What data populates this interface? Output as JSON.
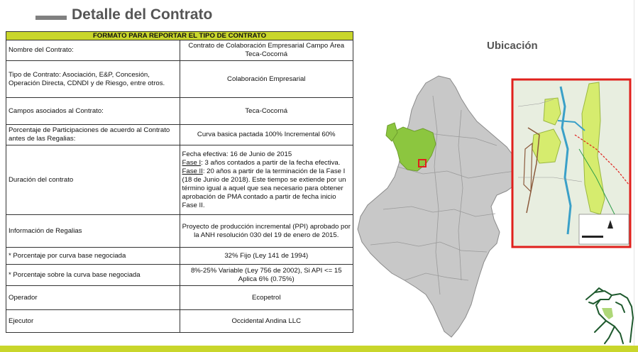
{
  "page": {
    "title": "Detalle del Contrato",
    "ubicacion_label": "Ubicación"
  },
  "table": {
    "header": "FORMATO PARA REPORTAR EL TIPO DE CONTRATO",
    "rows": [
      {
        "label": "Nombre del Contrato:",
        "value": "Contrato de Colaboración Empresarial Campo Área Teca-Cocorná"
      },
      {
        "label": "Tipo de Contrato: Asociación, E&P, Concesión, Operación Directa, CDNDI y de Riesgo, entre otros.",
        "value": "Colaboración Empresarial"
      },
      {
        "label": "Campos asociados al Contrato:",
        "value": "Teca-Cocorná"
      },
      {
        "label": "Porcentaje de Participaciones de acuerdo al Contrato antes de las Regalias:",
        "value": "Curva basica pactada 100%  Incremental  60%"
      },
      {
        "label": "Duración del contrato",
        "value": {
          "line1": "Fecha efectiva: 16 de Junio de 2015",
          "fase1_label": "Fase I",
          "fase1_text": ": 3 años contados a partir de la fecha efectiva.",
          "fase2_label": "Fase II",
          "fase2_text": ": 20 años a partir de la terminación de la Fase I (18 de Junio de 2018).  Este tiempo se extiende por un término igual a aquel que sea necesario para obtener aprobación de PMA contado a partir de fecha inicio Fase II."
        }
      },
      {
        "label": "Información de Regalias",
        "value": "Proyecto de producción incremental (PPI) aprobado por la ANH resolución 030 del 19 de enero de 2015."
      },
      {
        "label": "*    Porcentaje por curva base negociada",
        "value": "32% Fijo (Ley 141 de 1994)"
      },
      {
        "label": "*    Porcentaje sobre la curva base negociada",
        "value": "8%-25% Variable (Ley 756 de 2002), Si API <= 15 Aplica 6% (0.75%)"
      },
      {
        "label": "Operador",
        "value": "Ecopetrol"
      },
      {
        "label": "Ejecutor",
        "value": "Occidental Andina LLC"
      }
    ]
  },
  "colors": {
    "accent_green": "#c9d62b",
    "map_gray": "#c8c8c8",
    "highlight_green": "#8cc63f",
    "frame_red": "#e0201c",
    "title_gray": "#555555"
  },
  "icons": [
    "iguana-logo-icon"
  ]
}
